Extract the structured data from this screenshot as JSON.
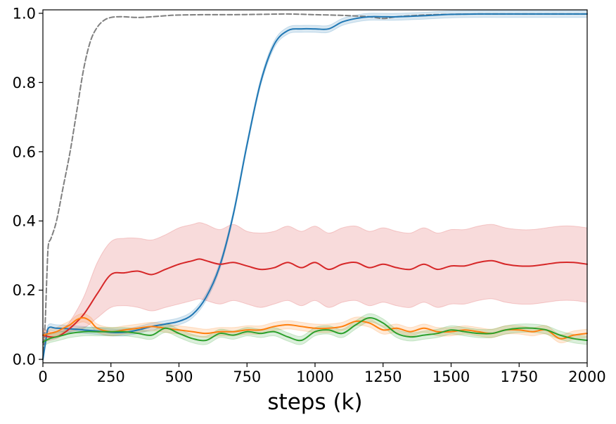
{
  "chart_data": {
    "type": "line",
    "xlabel": "steps (k)",
    "ylabel": "",
    "xlim": [
      0,
      2000
    ],
    "ylim": [
      -0.01,
      1.01
    ],
    "x_ticks": [
      "0",
      "250",
      "500",
      "750",
      "1000",
      "1250",
      "1500",
      "1750",
      "2000"
    ],
    "y_ticks": [
      "0.0",
      "0.2",
      "0.4",
      "0.6",
      "0.8",
      "1.0"
    ],
    "grid": false,
    "legend": "none",
    "series": [
      {
        "color": "#7f7f7f",
        "style": "dashed",
        "x": [
          0,
          8,
          15,
          20,
          30,
          50,
          75,
          100,
          125,
          150,
          175,
          200,
          225,
          250,
          275,
          300,
          350,
          400,
          450,
          500,
          600,
          700,
          800,
          900,
          1000,
          1100,
          1200,
          1250,
          1300,
          1400,
          1500,
          1600,
          1700,
          1800,
          1900,
          2000
        ],
        "y": [
          0.0,
          0.1,
          0.25,
          0.33,
          0.35,
          0.4,
          0.5,
          0.6,
          0.72,
          0.84,
          0.92,
          0.96,
          0.98,
          0.988,
          0.99,
          0.99,
          0.988,
          0.99,
          0.993,
          0.995,
          0.996,
          0.996,
          0.997,
          0.998,
          0.996,
          0.994,
          0.99,
          0.985,
          0.99,
          0.995,
          0.997,
          0.998,
          0.998,
          0.998,
          0.998,
          0.998
        ]
      },
      {
        "color": "#1f77b4",
        "style": "solid",
        "band": 0.01,
        "x": [
          0,
          10,
          20,
          50,
          100,
          150,
          200,
          250,
          300,
          350,
          400,
          450,
          500,
          550,
          600,
          650,
          700,
          750,
          800,
          850,
          900,
          950,
          1000,
          1050,
          1100,
          1150,
          1200,
          1250,
          1300,
          1400,
          1500,
          1600,
          1700,
          1800,
          1900,
          2000
        ],
        "y": [
          0.0,
          0.05,
          0.09,
          0.09,
          0.088,
          0.085,
          0.082,
          0.078,
          0.078,
          0.085,
          0.095,
          0.102,
          0.11,
          0.13,
          0.18,
          0.27,
          0.42,
          0.62,
          0.8,
          0.91,
          0.95,
          0.955,
          0.955,
          0.955,
          0.975,
          0.985,
          0.99,
          0.99,
          0.99,
          0.993,
          0.997,
          0.998,
          0.998,
          0.998,
          0.998,
          0.998
        ]
      },
      {
        "color": "#d62728",
        "style": "solid",
        "x": [
          0,
          25,
          50,
          75,
          100,
          150,
          200,
          250,
          300,
          350,
          400,
          450,
          500,
          550,
          575,
          600,
          650,
          700,
          750,
          800,
          850,
          900,
          950,
          1000,
          1050,
          1100,
          1150,
          1200,
          1250,
          1300,
          1350,
          1400,
          1450,
          1500,
          1550,
          1600,
          1650,
          1700,
          1750,
          1800,
          1850,
          1900,
          1950,
          2000
        ],
        "y": [
          0.07,
          0.065,
          0.065,
          0.075,
          0.09,
          0.13,
          0.19,
          0.245,
          0.25,
          0.255,
          0.245,
          0.26,
          0.275,
          0.285,
          0.29,
          0.285,
          0.275,
          0.28,
          0.27,
          0.26,
          0.265,
          0.28,
          0.265,
          0.28,
          0.26,
          0.275,
          0.28,
          0.265,
          0.275,
          0.265,
          0.26,
          0.275,
          0.26,
          0.27,
          0.27,
          0.28,
          0.285,
          0.275,
          0.27,
          0.27,
          0.275,
          0.28,
          0.28,
          0.275
        ],
        "band_lower": [
          0.05,
          0.055,
          0.06,
          0.07,
          0.08,
          0.09,
          0.12,
          0.15,
          0.155,
          0.15,
          0.14,
          0.15,
          0.16,
          0.17,
          0.175,
          0.17,
          0.16,
          0.17,
          0.16,
          0.15,
          0.16,
          0.17,
          0.155,
          0.17,
          0.15,
          0.165,
          0.17,
          0.155,
          0.165,
          0.155,
          0.15,
          0.165,
          0.15,
          0.16,
          0.16,
          0.17,
          0.175,
          0.165,
          0.16,
          0.16,
          0.165,
          0.17,
          0.17,
          0.165
        ],
        "band_upper": [
          0.09,
          0.08,
          0.08,
          0.09,
          0.11,
          0.18,
          0.28,
          0.34,
          0.35,
          0.35,
          0.345,
          0.36,
          0.38,
          0.39,
          0.395,
          0.39,
          0.375,
          0.39,
          0.37,
          0.365,
          0.37,
          0.385,
          0.37,
          0.385,
          0.365,
          0.38,
          0.385,
          0.37,
          0.38,
          0.37,
          0.365,
          0.38,
          0.365,
          0.375,
          0.375,
          0.385,
          0.39,
          0.38,
          0.375,
          0.375,
          0.38,
          0.385,
          0.385,
          0.38
        ]
      },
      {
        "color": "#ff7f0e",
        "style": "solid",
        "band": 0.012,
        "x": [
          0,
          25,
          50,
          75,
          100,
          125,
          150,
          175,
          200,
          250,
          300,
          350,
          400,
          450,
          500,
          550,
          600,
          650,
          700,
          750,
          800,
          850,
          900,
          950,
          1000,
          1050,
          1100,
          1150,
          1200,
          1250,
          1300,
          1350,
          1400,
          1450,
          1500,
          1550,
          1600,
          1650,
          1700,
          1750,
          1800,
          1850,
          1900,
          1950,
          2000
        ],
        "y": [
          0.07,
          0.075,
          0.08,
          0.09,
          0.1,
          0.115,
          0.12,
          0.11,
          0.09,
          0.08,
          0.085,
          0.09,
          0.095,
          0.09,
          0.085,
          0.08,
          0.075,
          0.08,
          0.08,
          0.085,
          0.085,
          0.095,
          0.1,
          0.095,
          0.09,
          0.09,
          0.095,
          0.11,
          0.105,
          0.085,
          0.09,
          0.08,
          0.09,
          0.08,
          0.08,
          0.085,
          0.08,
          0.075,
          0.085,
          0.085,
          0.08,
          0.085,
          0.06,
          0.07,
          0.075
        ]
      },
      {
        "color": "#2ca02c",
        "style": "solid",
        "band": 0.012,
        "x": [
          0,
          25,
          50,
          75,
          100,
          150,
          200,
          250,
          300,
          350,
          400,
          450,
          500,
          550,
          600,
          650,
          700,
          750,
          800,
          850,
          900,
          950,
          1000,
          1050,
          1100,
          1150,
          1200,
          1250,
          1300,
          1350,
          1400,
          1450,
          1500,
          1550,
          1600,
          1650,
          1700,
          1750,
          1800,
          1850,
          1900,
          1950,
          2000
        ],
        "y": [
          0.05,
          0.06,
          0.065,
          0.07,
          0.075,
          0.08,
          0.08,
          0.08,
          0.08,
          0.075,
          0.07,
          0.09,
          0.075,
          0.06,
          0.055,
          0.075,
          0.07,
          0.08,
          0.075,
          0.08,
          0.065,
          0.055,
          0.08,
          0.085,
          0.075,
          0.1,
          0.12,
          0.105,
          0.075,
          0.065,
          0.07,
          0.075,
          0.085,
          0.08,
          0.075,
          0.075,
          0.085,
          0.09,
          0.09,
          0.085,
          0.07,
          0.06,
          0.055
        ]
      }
    ]
  }
}
